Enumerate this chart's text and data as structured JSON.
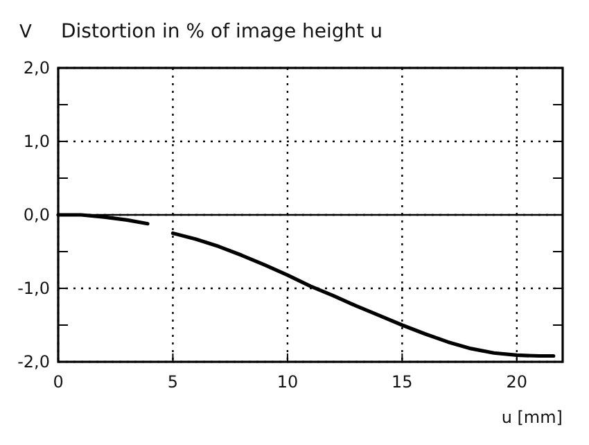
{
  "chart_data": {
    "type": "line",
    "title": "Distortion in % of image height u",
    "ylabel": "V",
    "xlabel": "u [mm]",
    "x": [
      0,
      1,
      2,
      3,
      3.9,
      4.5,
      5,
      6,
      7,
      8,
      9,
      10,
      11,
      12,
      13,
      14,
      15,
      16,
      17,
      18,
      19,
      20,
      21,
      21.6
    ],
    "series": [
      {
        "color": "#000000",
        "values": [
          0,
          0,
          -0.03,
          -0.07,
          -0.12,
          null,
          -0.25,
          -0.33,
          -0.43,
          -0.55,
          -0.68,
          -0.82,
          -0.97,
          -1.1,
          -1.24,
          -1.37,
          -1.5,
          -1.62,
          -1.73,
          -1.82,
          -1.88,
          -1.91,
          -1.92,
          -1.92
        ]
      }
    ],
    "xlim": [
      0,
      22
    ],
    "ylim": [
      -2,
      2
    ],
    "xticks": [
      0,
      5,
      10,
      15,
      20
    ],
    "yticks": [
      {
        "value": -2,
        "label": "-2,0"
      },
      {
        "value": -1.5,
        "label": null
      },
      {
        "value": -1,
        "label": "-1,0"
      },
      {
        "value": -0.5,
        "label": null
      },
      {
        "value": 0,
        "label": "0,0"
      },
      {
        "value": 0.5,
        "label": null
      },
      {
        "value": 1,
        "label": "1,0"
      },
      {
        "value": 1.5,
        "label": null
      },
      {
        "value": 2,
        "label": "2,0"
      }
    ],
    "ref_lines": [
      {
        "axis": "y",
        "value": 0,
        "color": "#000000",
        "line_style": "solid"
      }
    ],
    "grid": true,
    "line_style": "solid",
    "marker": "none"
  }
}
